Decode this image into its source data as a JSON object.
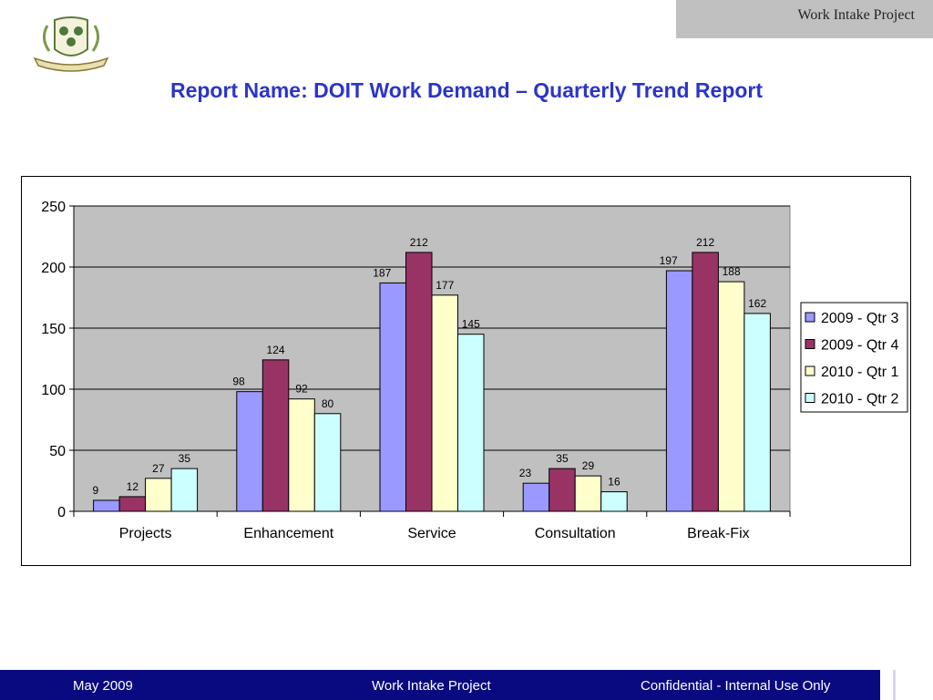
{
  "header": {
    "tab_label": "Work Intake Project"
  },
  "title": "Report Name:  DOIT Work Demand – Quarterly Trend Report",
  "colors": {
    "title": "#2b35c9",
    "plot_bg": "#c0c0c0",
    "footer_bg": "#0a0a80"
  },
  "chart_data": {
    "type": "bar",
    "categories": [
      "Projects",
      "Enhancement",
      "Service",
      "Consultation",
      "Break-Fix"
    ],
    "series": [
      {
        "name": "2009 - Qtr 3",
        "color": "#9999ff",
        "values": [
          9,
          98,
          187,
          23,
          197
        ]
      },
      {
        "name": "2009 - Qtr 4",
        "color": "#993366",
        "values": [
          12,
          124,
          212,
          35,
          212
        ]
      },
      {
        "name": "2010 - Qtr 1",
        "color": "#ffffcc",
        "values": [
          27,
          92,
          177,
          29,
          188
        ]
      },
      {
        "name": "2010 - Qtr 2",
        "color": "#ccffff",
        "values": [
          35,
          80,
          145,
          16,
          162
        ]
      }
    ],
    "ylim": [
      0,
      250
    ],
    "yticks": [
      0,
      50,
      100,
      150,
      200,
      250
    ],
    "grid": true,
    "legend": "right",
    "data_labels": true
  },
  "footer": {
    "left": "May 2009",
    "center": "Work Intake Project",
    "right": "Confidential - Internal Use Only"
  }
}
